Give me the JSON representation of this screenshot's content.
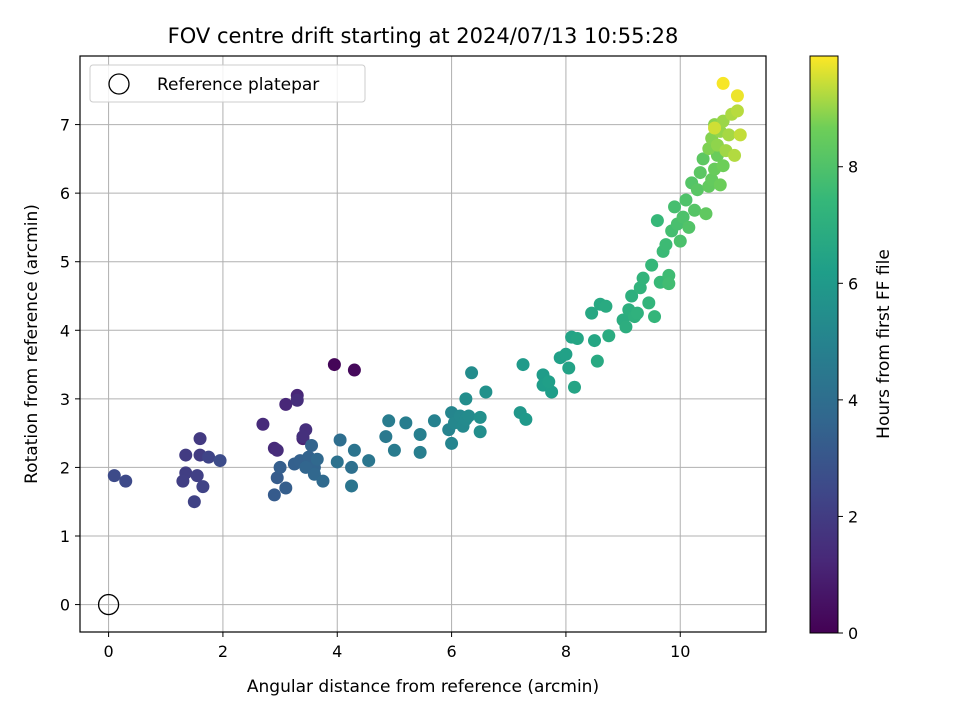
{
  "chart_data": {
    "type": "scatter",
    "title": "FOV centre drift starting at 2024/07/13 10:55:28",
    "xlabel": "Angular distance from reference (arcmin)",
    "ylabel": "Rotation from reference (arcmin)",
    "xlim": [
      -0.5,
      11.5
    ],
    "ylim": [
      -0.4,
      8.0
    ],
    "xticks": [
      0,
      2,
      4,
      6,
      8,
      10
    ],
    "yticks": [
      0,
      1,
      2,
      3,
      4,
      5,
      6,
      7
    ],
    "grid": true,
    "legend": {
      "position": "top-left",
      "entries": [
        "Reference platepar"
      ]
    },
    "reference_point": {
      "x": 0,
      "y": 0
    },
    "colorbar": {
      "label": "Hours from first FF file",
      "colormap": "viridis",
      "range": [
        0,
        9.9
      ],
      "ticks": [
        0,
        2,
        4,
        6,
        8
      ]
    },
    "points": [
      [
        3.95,
        3.5,
        0.15
      ],
      [
        4.3,
        3.42,
        0.25
      ],
      [
        3.4,
        2.42,
        1.1
      ],
      [
        3.3,
        3.05,
        1.2
      ],
      [
        3.1,
        2.92,
        1.25
      ],
      [
        2.9,
        2.28,
        1.3
      ],
      [
        2.7,
        2.63,
        1.35
      ],
      [
        2.95,
        2.25,
        1.4
      ],
      [
        3.3,
        2.98,
        1.45
      ],
      [
        3.45,
        2.55,
        1.5
      ],
      [
        3.4,
        2.45,
        1.55
      ],
      [
        1.6,
        2.42,
        1.9
      ],
      [
        1.35,
        2.18,
        1.95
      ],
      [
        1.6,
        2.18,
        2.0
      ],
      [
        1.35,
        1.92,
        2.05
      ],
      [
        1.3,
        1.8,
        2.1
      ],
      [
        1.55,
        1.88,
        2.15
      ],
      [
        1.5,
        1.5,
        2.2
      ],
      [
        1.65,
        1.72,
        2.25
      ],
      [
        1.75,
        2.15,
        2.3
      ],
      [
        0.3,
        1.8,
        2.5
      ],
      [
        0.1,
        1.88,
        2.55
      ],
      [
        1.95,
        2.1,
        2.6
      ],
      [
        2.9,
        1.6,
        3.2
      ],
      [
        2.95,
        1.85,
        3.25
      ],
      [
        3.1,
        1.7,
        3.3
      ],
      [
        3.0,
        2.0,
        3.35
      ],
      [
        3.25,
        2.05,
        3.4
      ],
      [
        3.35,
        2.1,
        3.45
      ],
      [
        3.5,
        2.15,
        3.5
      ],
      [
        3.55,
        2.32,
        3.55
      ],
      [
        3.6,
        2.0,
        3.6
      ],
      [
        3.45,
        2.0,
        3.65
      ],
      [
        3.6,
        1.9,
        3.7
      ],
      [
        3.65,
        2.12,
        3.75
      ],
      [
        3.75,
        1.8,
        3.8
      ],
      [
        4.05,
        2.4,
        4.0
      ],
      [
        4.25,
        2.0,
        4.1
      ],
      [
        4.0,
        2.08,
        4.2
      ],
      [
        4.3,
        2.25,
        4.3
      ],
      [
        4.25,
        1.73,
        4.35
      ],
      [
        4.55,
        2.1,
        4.4
      ],
      [
        4.85,
        2.45,
        4.5
      ],
      [
        5.0,
        2.25,
        4.6
      ],
      [
        4.9,
        2.68,
        4.65
      ],
      [
        5.2,
        2.65,
        4.7
      ],
      [
        5.45,
        2.22,
        4.75
      ],
      [
        5.45,
        2.48,
        4.8
      ],
      [
        5.7,
        2.68,
        4.9
      ],
      [
        5.95,
        2.55,
        5.0
      ],
      [
        6.0,
        2.35,
        5.05
      ],
      [
        6.0,
        2.8,
        5.1
      ],
      [
        6.05,
        2.65,
        5.15
      ],
      [
        6.15,
        2.75,
        5.2
      ],
      [
        6.2,
        2.6,
        5.25
      ],
      [
        6.25,
        2.7,
        5.3
      ],
      [
        6.3,
        2.75,
        5.35
      ],
      [
        6.35,
        3.38,
        5.4
      ],
      [
        6.25,
        3.0,
        5.45
      ],
      [
        6.5,
        2.52,
        5.5
      ],
      [
        6.5,
        2.73,
        5.55
      ],
      [
        6.6,
        3.1,
        5.6
      ],
      [
        7.2,
        2.8,
        5.9
      ],
      [
        7.3,
        2.7,
        5.95
      ],
      [
        7.25,
        3.5,
        6.0
      ],
      [
        7.6,
        3.35,
        6.1
      ],
      [
        7.6,
        3.2,
        6.15
      ],
      [
        7.75,
        3.1,
        6.2
      ],
      [
        7.7,
        3.25,
        6.25
      ],
      [
        7.9,
        3.6,
        6.3
      ],
      [
        8.0,
        3.65,
        6.35
      ],
      [
        8.05,
        3.45,
        6.4
      ],
      [
        8.1,
        3.9,
        6.45
      ],
      [
        8.15,
        3.17,
        6.5
      ],
      [
        8.2,
        3.88,
        6.55
      ],
      [
        8.5,
        3.85,
        6.6
      ],
      [
        8.45,
        4.25,
        6.65
      ],
      [
        8.6,
        4.38,
        6.7
      ],
      [
        8.55,
        3.55,
        6.75
      ],
      [
        8.7,
        4.35,
        6.8
      ],
      [
        8.75,
        3.92,
        6.85
      ],
      [
        9.0,
        4.15,
        6.9
      ],
      [
        9.05,
        4.05,
        6.95
      ],
      [
        9.1,
        4.3,
        7.0
      ],
      [
        9.15,
        4.5,
        7.05
      ],
      [
        9.2,
        4.2,
        7.1
      ],
      [
        9.25,
        4.25,
        7.15
      ],
      [
        9.3,
        4.62,
        7.2
      ],
      [
        9.35,
        4.76,
        7.25
      ],
      [
        9.45,
        4.4,
        7.3
      ],
      [
        9.55,
        4.2,
        7.35
      ],
      [
        9.5,
        4.95,
        7.4
      ],
      [
        9.6,
        5.6,
        7.45
      ],
      [
        9.65,
        4.7,
        7.5
      ],
      [
        9.7,
        5.15,
        7.55
      ],
      [
        9.75,
        5.25,
        7.6
      ],
      [
        9.8,
        4.8,
        7.65
      ],
      [
        9.8,
        4.68,
        7.7
      ],
      [
        9.85,
        5.45,
        7.75
      ],
      [
        9.9,
        5.8,
        7.8
      ],
      [
        9.95,
        5.55,
        7.85
      ],
      [
        10.0,
        5.3,
        7.9
      ],
      [
        10.05,
        5.65,
        7.95
      ],
      [
        10.1,
        5.9,
        8.0
      ],
      [
        10.15,
        5.5,
        8.05
      ],
      [
        10.2,
        6.15,
        8.1
      ],
      [
        10.25,
        5.75,
        8.15
      ],
      [
        10.3,
        6.05,
        8.2
      ],
      [
        10.35,
        6.3,
        8.25
      ],
      [
        10.4,
        6.5,
        8.3
      ],
      [
        10.45,
        5.7,
        8.35
      ],
      [
        10.5,
        6.1,
        8.4
      ],
      [
        10.55,
        6.2,
        8.45
      ],
      [
        10.6,
        6.35,
        8.5
      ],
      [
        10.65,
        6.55,
        8.55
      ],
      [
        10.7,
        6.12,
        8.6
      ],
      [
        10.75,
        6.4,
        8.65
      ],
      [
        10.5,
        6.65,
        8.8
      ],
      [
        10.55,
        6.8,
        8.85
      ],
      [
        10.6,
        7.0,
        8.9
      ],
      [
        10.65,
        6.7,
        8.95
      ],
      [
        10.7,
        6.9,
        9.0
      ],
      [
        10.75,
        7.05,
        9.05
      ],
      [
        10.8,
        6.62,
        9.1
      ],
      [
        10.85,
        6.85,
        9.15
      ],
      [
        10.9,
        7.15,
        9.2
      ],
      [
        10.95,
        6.55,
        9.25
      ],
      [
        11.0,
        7.2,
        9.3
      ],
      [
        11.05,
        6.85,
        9.4
      ],
      [
        10.75,
        7.6,
        9.85
      ],
      [
        11.0,
        7.42,
        9.75
      ],
      [
        10.6,
        6.95,
        9.5
      ]
    ]
  }
}
